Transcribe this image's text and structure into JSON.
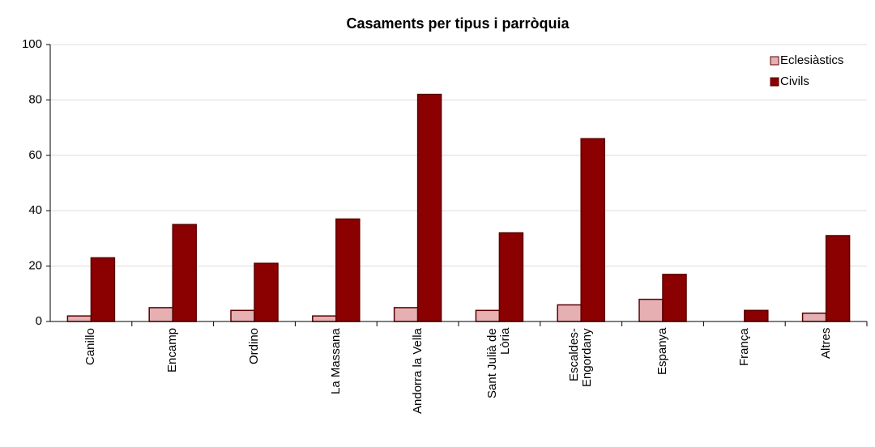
{
  "chart_data": {
    "type": "bar",
    "title": "Casaments per tipus i parròquia",
    "categories": [
      "Canillo",
      "Encamp",
      "Ordino",
      "La Massana",
      "Andorra la Vella",
      "Sant Julià de\nLòria",
      "Escaldes-\nEngordany",
      "Espanya",
      "França",
      "Altres"
    ],
    "series": [
      {
        "name": "Eclesiàstics",
        "color": "#e6b0b3",
        "values": [
          2,
          5,
          4,
          2,
          5,
          4,
          6,
          8,
          0,
          3
        ]
      },
      {
        "name": "Civils",
        "color": "#8b0000",
        "values": [
          23,
          35,
          21,
          37,
          82,
          32,
          66,
          17,
          4,
          31
        ]
      }
    ],
    "ylim": [
      0,
      100
    ],
    "yticks": [
      0,
      20,
      40,
      60,
      80,
      100
    ],
    "grid": true,
    "legend": "top-right"
  }
}
